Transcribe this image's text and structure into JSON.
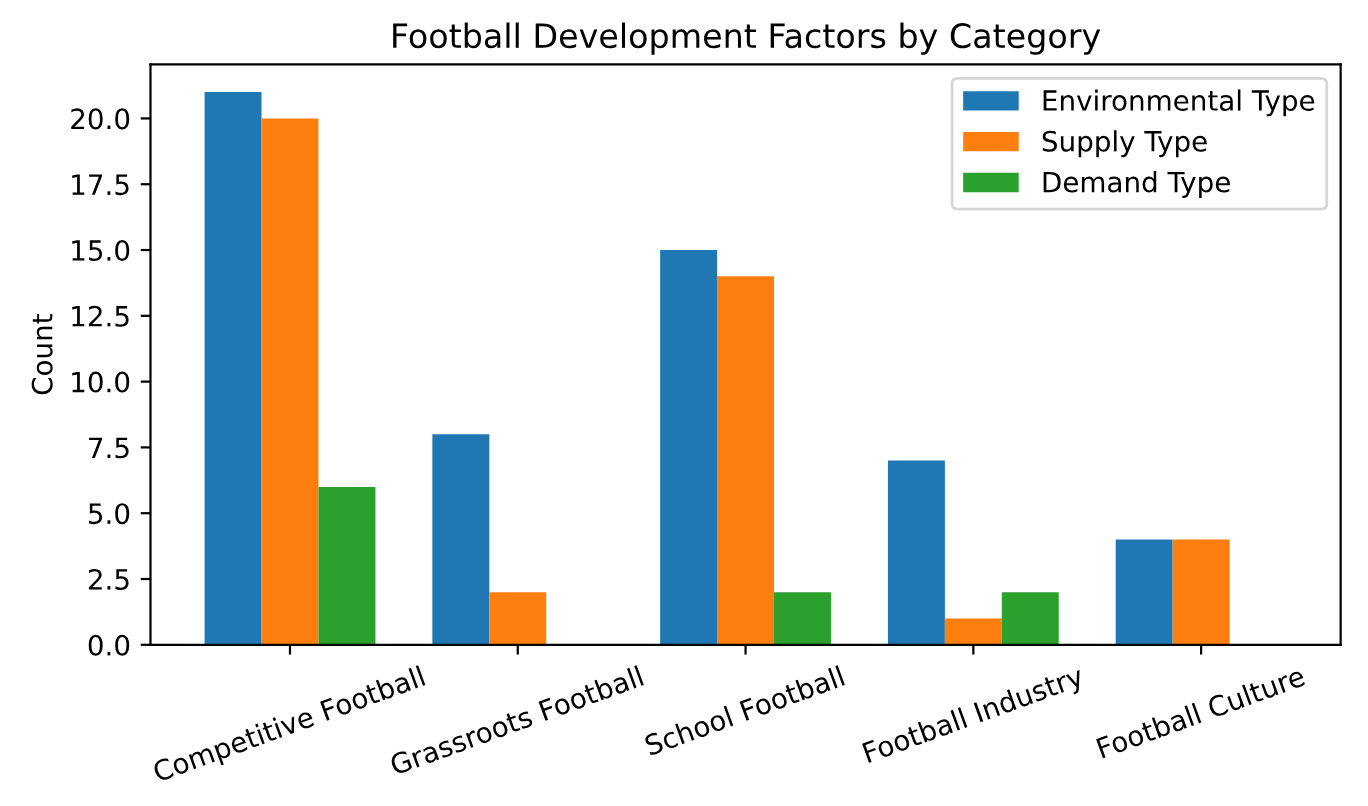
{
  "chart_data": {
    "type": "bar",
    "title": "Football Development Factors by Category",
    "ylabel": "Count",
    "categories": [
      "Competitive Football",
      "Grassroots Football",
      "School Football",
      "Football Industry",
      "Football Culture"
    ],
    "series": [
      {
        "name": "Environmental Type",
        "color": "#1f77b4",
        "values": [
          21,
          8,
          15,
          7,
          4
        ]
      },
      {
        "name": "Supply Type",
        "color": "#ff7f0e",
        "values": [
          20,
          2,
          14,
          1,
          4
        ]
      },
      {
        "name": "Demand Type",
        "color": "#2ca02c",
        "values": [
          6,
          0,
          2,
          2,
          0
        ]
      }
    ],
    "ylim": [
      0,
      22.05
    ],
    "yticks": [
      {
        "value": 0,
        "label": "0.0"
      },
      {
        "value": 2.5,
        "label": "2.5"
      },
      {
        "value": 5,
        "label": "5.0"
      },
      {
        "value": 7.5,
        "label": "7.5"
      },
      {
        "value": 10,
        "label": "10.0"
      },
      {
        "value": 12.5,
        "label": "12.5"
      },
      {
        "value": 15,
        "label": "15.0"
      },
      {
        "value": 17.5,
        "label": "17.5"
      },
      {
        "value": 20,
        "label": "20.0"
      }
    ],
    "legend": "top right",
    "grid": false
  }
}
